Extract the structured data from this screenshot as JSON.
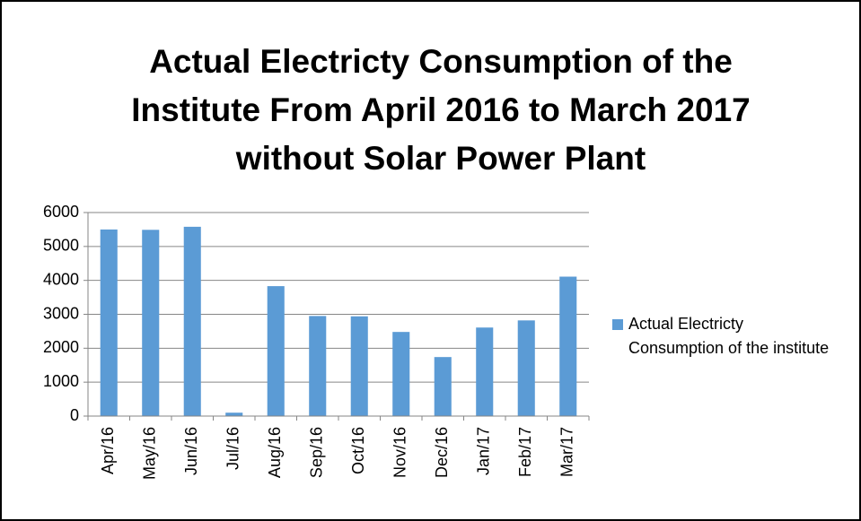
{
  "chart_data": {
    "type": "bar",
    "title": "Actual Electricty Consumption of the Institute From April 2016 to March 2017 without Solar Power Plant",
    "categories": [
      "Apr/16",
      "May/16",
      "Jun/16",
      "Jul/16",
      "Aug/16",
      "Sep/16",
      "Oct/16",
      "Nov/16",
      "Dec/16",
      "Jan/17",
      "Feb/17",
      "Mar/17"
    ],
    "series": [
      {
        "name": "Actual Electricty Consumption of the institute",
        "color": "#5b9bd5",
        "values": [
          5500,
          5490,
          5580,
          100,
          3830,
          2950,
          2940,
          2480,
          1740,
          2610,
          2820,
          4110
        ]
      }
    ],
    "ylim": [
      0,
      6000
    ],
    "yticks": [
      0,
      1000,
      2000,
      3000,
      4000,
      5000,
      6000
    ],
    "grid": true,
    "legend": "right"
  }
}
